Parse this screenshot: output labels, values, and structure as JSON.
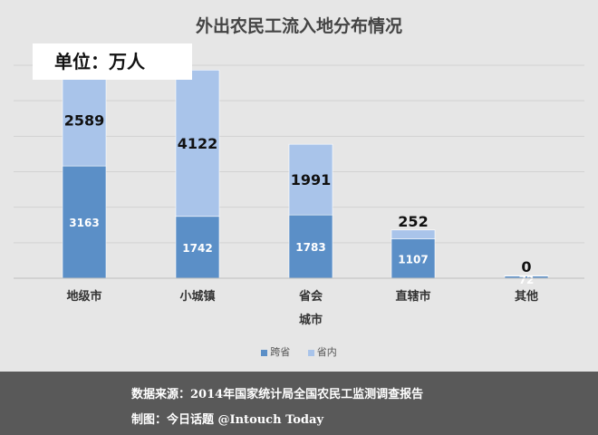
{
  "chart_data": {
    "type": "bar",
    "stacked": true,
    "title": "外出农民工流入地分布情况",
    "unit_label": "单位：万人",
    "categories": [
      "地级市",
      "小城镇",
      "省会城市",
      "直辖市",
      "其他"
    ],
    "series": [
      {
        "name": "跨省",
        "color": "#5b8fc7",
        "values": [
          3163,
          1742,
          1783,
          1107,
          72
        ]
      },
      {
        "name": "省内",
        "color": "#a9c4ea",
        "values": [
          2589,
          4122,
          1991,
          252,
          0
        ]
      }
    ],
    "ylim": [
      0,
      6000
    ],
    "grid": true,
    "legend_position": "bottom"
  },
  "footer": {
    "source": "数据来源：2014年国家统计局全国农民工监测调查报告",
    "credit": "制图：今日话题 @Intouch Today"
  }
}
